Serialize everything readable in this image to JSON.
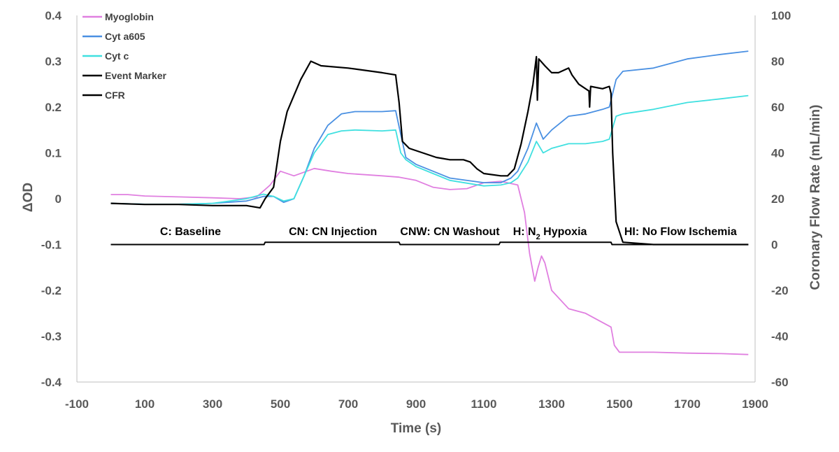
{
  "chart_data": {
    "type": "line",
    "title": "",
    "xlabel": "Time (s)",
    "ylabel": "ΔOD",
    "y2label": "Coronary Flow Rate (mL/min)",
    "xlim": [
      -100,
      1900
    ],
    "ylim": [
      -0.4,
      0.4
    ],
    "y2lim": [
      -60,
      100
    ],
    "x_ticks": [
      -100,
      100,
      300,
      500,
      700,
      900,
      1100,
      1300,
      1500,
      1700,
      1900
    ],
    "y_ticks": [
      0.4,
      0.3,
      0.2,
      0.1,
      0,
      -0.1,
      -0.2,
      -0.3,
      -0.4
    ],
    "y2_ticks": [
      100,
      80,
      60,
      40,
      20,
      0,
      -20,
      -40,
      -60
    ],
    "legend_position": "top-left",
    "series": [
      {
        "name": "Myoglobin",
        "axis": "left",
        "color": "#e07fe0",
        "points": [
          [
            0,
            0.009
          ],
          [
            50,
            0.009
          ],
          [
            100,
            0.006
          ],
          [
            200,
            0.004
          ],
          [
            300,
            0.002
          ],
          [
            380,
            0
          ],
          [
            430,
            0.004
          ],
          [
            470,
            0.03
          ],
          [
            500,
            0.06
          ],
          [
            540,
            0.05
          ],
          [
            600,
            0.066
          ],
          [
            650,
            0.06
          ],
          [
            700,
            0.055
          ],
          [
            800,
            0.05
          ],
          [
            850,
            0.047
          ],
          [
            900,
            0.04
          ],
          [
            950,
            0.025
          ],
          [
            1000,
            0.02
          ],
          [
            1050,
            0.022
          ],
          [
            1100,
            0.035
          ],
          [
            1150,
            0.038
          ],
          [
            1200,
            0.03
          ],
          [
            1220,
            -0.03
          ],
          [
            1235,
            -0.12
          ],
          [
            1250,
            -0.18
          ],
          [
            1260,
            -0.15
          ],
          [
            1270,
            -0.125
          ],
          [
            1280,
            -0.14
          ],
          [
            1300,
            -0.2
          ],
          [
            1350,
            -0.24
          ],
          [
            1400,
            -0.25
          ],
          [
            1450,
            -0.27
          ],
          [
            1475,
            -0.28
          ],
          [
            1485,
            -0.32
          ],
          [
            1500,
            -0.335
          ],
          [
            1600,
            -0.335
          ],
          [
            1700,
            -0.337
          ],
          [
            1800,
            -0.338
          ],
          [
            1880,
            -0.34
          ]
        ]
      },
      {
        "name": "Cyt a605",
        "axis": "left",
        "color": "#4a90e2",
        "points": [
          [
            0,
            -0.01
          ],
          [
            100,
            -0.012
          ],
          [
            200,
            -0.012
          ],
          [
            300,
            -0.01
          ],
          [
            400,
            -0.005
          ],
          [
            450,
            0.005
          ],
          [
            480,
            0.005
          ],
          [
            510,
            -0.008
          ],
          [
            540,
            0
          ],
          [
            570,
            0.05
          ],
          [
            600,
            0.11
          ],
          [
            640,
            0.16
          ],
          [
            680,
            0.185
          ],
          [
            720,
            0.19
          ],
          [
            800,
            0.19
          ],
          [
            840,
            0.192
          ],
          [
            855,
            0.14
          ],
          [
            870,
            0.09
          ],
          [
            900,
            0.075
          ],
          [
            950,
            0.06
          ],
          [
            1000,
            0.045
          ],
          [
            1100,
            0.035
          ],
          [
            1150,
            0.035
          ],
          [
            1180,
            0.045
          ],
          [
            1200,
            0.06
          ],
          [
            1230,
            0.11
          ],
          [
            1255,
            0.165
          ],
          [
            1275,
            0.13
          ],
          [
            1300,
            0.15
          ],
          [
            1350,
            0.18
          ],
          [
            1400,
            0.185
          ],
          [
            1450,
            0.195
          ],
          [
            1470,
            0.2
          ],
          [
            1490,
            0.26
          ],
          [
            1510,
            0.278
          ],
          [
            1600,
            0.285
          ],
          [
            1700,
            0.305
          ],
          [
            1800,
            0.315
          ],
          [
            1880,
            0.322
          ]
        ]
      },
      {
        "name": "Cyt c",
        "axis": "left",
        "color": "#40e0e0",
        "points": [
          [
            0,
            -0.01
          ],
          [
            100,
            -0.012
          ],
          [
            200,
            -0.012
          ],
          [
            300,
            -0.01
          ],
          [
            400,
            0
          ],
          [
            450,
            0.01
          ],
          [
            480,
            0.005
          ],
          [
            510,
            -0.005
          ],
          [
            540,
            0
          ],
          [
            570,
            0.05
          ],
          [
            600,
            0.1
          ],
          [
            640,
            0.14
          ],
          [
            680,
            0.148
          ],
          [
            720,
            0.15
          ],
          [
            800,
            0.148
          ],
          [
            840,
            0.15
          ],
          [
            855,
            0.1
          ],
          [
            870,
            0.085
          ],
          [
            900,
            0.07
          ],
          [
            950,
            0.055
          ],
          [
            1000,
            0.04
          ],
          [
            1100,
            0.028
          ],
          [
            1150,
            0.03
          ],
          [
            1180,
            0.035
          ],
          [
            1200,
            0.045
          ],
          [
            1230,
            0.08
          ],
          [
            1255,
            0.125
          ],
          [
            1275,
            0.1
          ],
          [
            1300,
            0.11
          ],
          [
            1350,
            0.12
          ],
          [
            1400,
            0.12
          ],
          [
            1450,
            0.125
          ],
          [
            1470,
            0.13
          ],
          [
            1490,
            0.18
          ],
          [
            1510,
            0.185
          ],
          [
            1600,
            0.195
          ],
          [
            1700,
            0.21
          ],
          [
            1800,
            0.218
          ],
          [
            1880,
            0.225
          ]
        ]
      },
      {
        "name": "Event Marker",
        "axis": "right",
        "color": "#000000",
        "points": [
          [
            0,
            0
          ],
          [
            452,
            0
          ],
          [
            455,
            1
          ],
          [
            850,
            1
          ],
          [
            853,
            0
          ],
          [
            1145,
            0
          ],
          [
            1148,
            1
          ],
          [
            1475,
            1
          ],
          [
            1478,
            0
          ],
          [
            1880,
            0
          ]
        ]
      },
      {
        "name": "CFR",
        "axis": "right",
        "color": "#000000",
        "points": [
          [
            0,
            18
          ],
          [
            100,
            17.5
          ],
          [
            200,
            17.5
          ],
          [
            300,
            17
          ],
          [
            400,
            17
          ],
          [
            440,
            16
          ],
          [
            455,
            20
          ],
          [
            480,
            25
          ],
          [
            500,
            45
          ],
          [
            520,
            58
          ],
          [
            540,
            65
          ],
          [
            560,
            72
          ],
          [
            590,
            80
          ],
          [
            620,
            78
          ],
          [
            700,
            77
          ],
          [
            800,
            75
          ],
          [
            840,
            74
          ],
          [
            850,
            62
          ],
          [
            860,
            45
          ],
          [
            880,
            42
          ],
          [
            920,
            40
          ],
          [
            960,
            38
          ],
          [
            1000,
            37
          ],
          [
            1040,
            37
          ],
          [
            1060,
            36
          ],
          [
            1080,
            33
          ],
          [
            1100,
            31
          ],
          [
            1150,
            30
          ],
          [
            1170,
            30
          ],
          [
            1190,
            33
          ],
          [
            1210,
            44
          ],
          [
            1230,
            58
          ],
          [
            1245,
            70
          ],
          [
            1255,
            82
          ],
          [
            1258,
            63
          ],
          [
            1262,
            81
          ],
          [
            1280,
            78
          ],
          [
            1300,
            75
          ],
          [
            1320,
            75
          ],
          [
            1350,
            77
          ],
          [
            1360,
            74
          ],
          [
            1380,
            70
          ],
          [
            1410,
            67
          ],
          [
            1412,
            60
          ],
          [
            1415,
            69
          ],
          [
            1450,
            68
          ],
          [
            1470,
            69
          ],
          [
            1475,
            66
          ],
          [
            1480,
            40
          ],
          [
            1490,
            10
          ],
          [
            1510,
            1
          ],
          [
            1600,
            0
          ],
          [
            1700,
            0
          ],
          [
            1800,
            0
          ],
          [
            1880,
            0
          ]
        ]
      }
    ],
    "phase_annotations": [
      {
        "text": "C: Baseline",
        "x": 235,
        "y": -0.07
      },
      {
        "text": "CN: CN Injection",
        "x": 655,
        "y": -0.07
      },
      {
        "text": "CNW: CN Washout",
        "x": 1000,
        "y": -0.07
      },
      {
        "text": "H: N",
        "subscript": "2",
        "suffix": " Hypoxia",
        "x": 1295,
        "y": -0.07
      },
      {
        "text": "HI: No Flow Ischemia",
        "x": 1680,
        "y": -0.07
      }
    ]
  }
}
